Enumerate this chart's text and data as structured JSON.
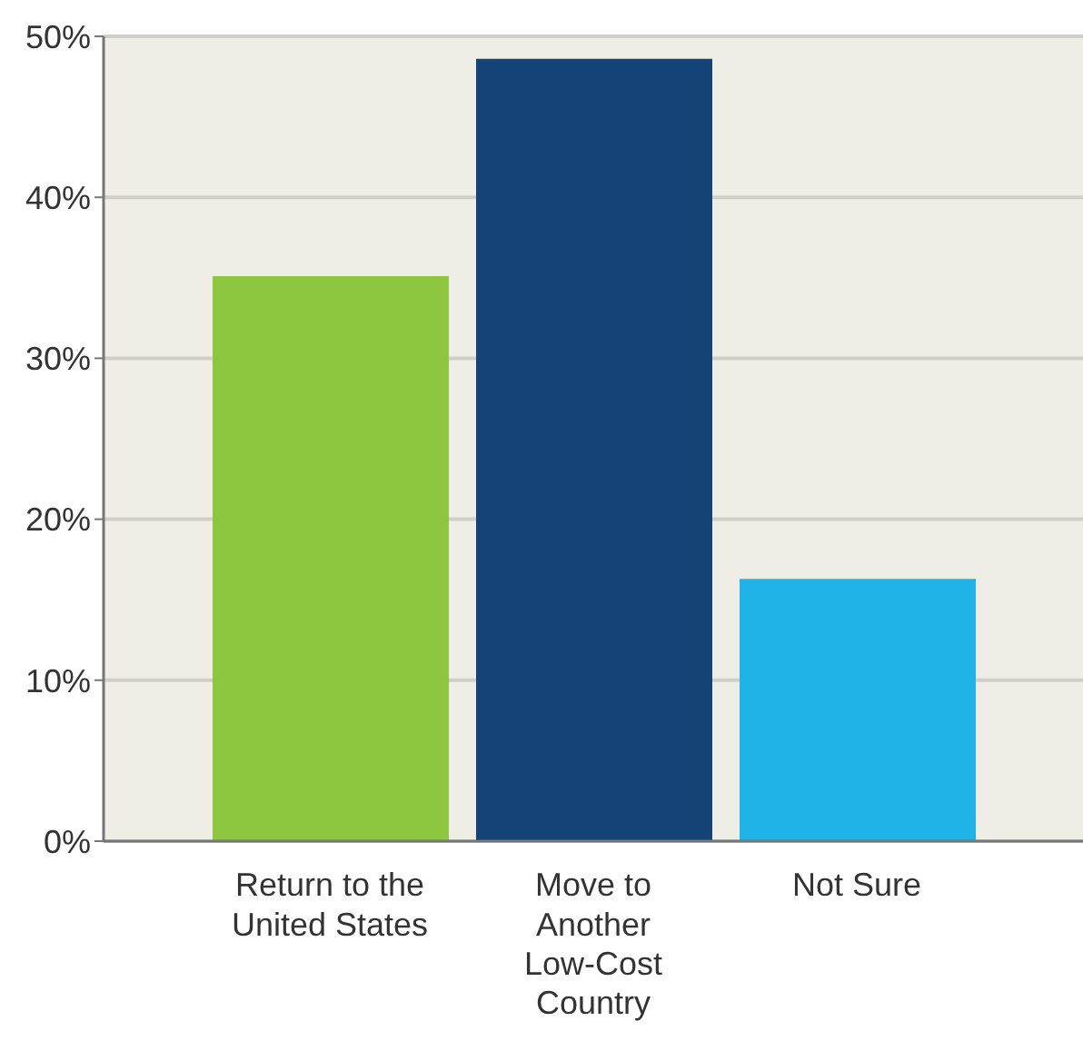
{
  "chart_data": {
    "type": "bar",
    "categories": [
      "Return to the United States",
      "Move to Another Low-Cost Country",
      "Not Sure"
    ],
    "values": [
      35.1,
      48.6,
      16.3
    ],
    "colors": [
      "#8dc63f",
      "#134377",
      "#1fb3e8"
    ],
    "ylim": [
      0,
      50
    ],
    "yticks": [
      {
        "value": 0,
        "label": "0%"
      },
      {
        "value": 10,
        "label": "10%"
      },
      {
        "value": 20,
        "label": "20%"
      },
      {
        "value": 30,
        "label": "30%"
      },
      {
        "value": 40,
        "label": "40%"
      },
      {
        "value": 50,
        "label": "50%"
      }
    ],
    "grid": "y"
  }
}
